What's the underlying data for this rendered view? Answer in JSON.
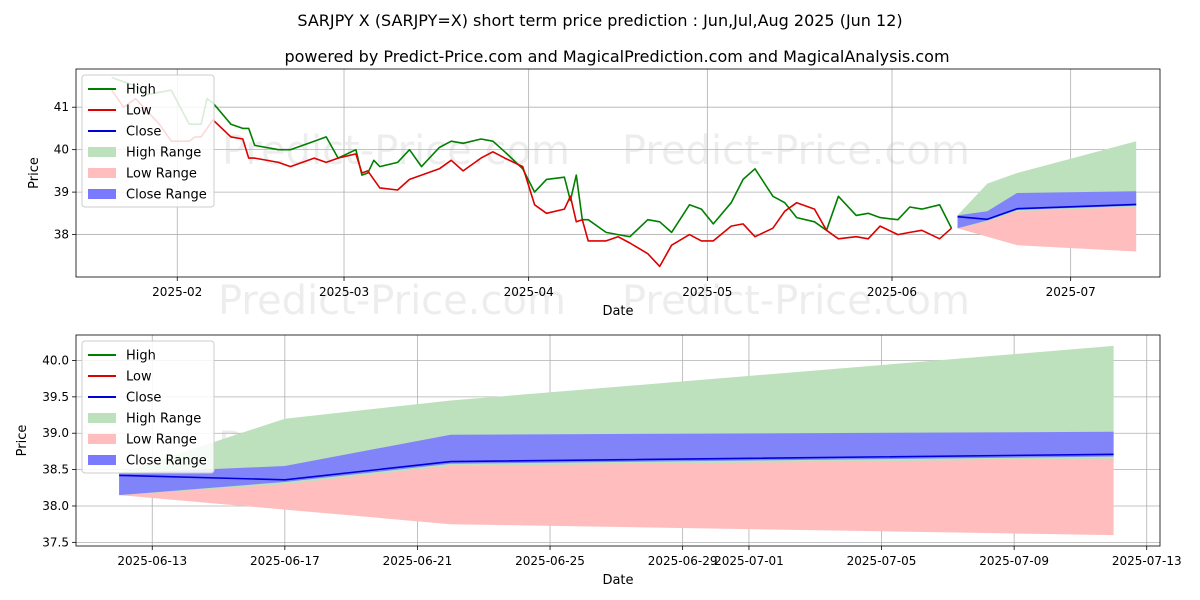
{
  "title": "SARJPY X (SARJPY=X) short term price prediction : Jun,Jul,Aug 2025 (Jun 12)",
  "subtitle": "powered by Predict-Price.com and MagicalPrediction.com and MagicalAnalysis.com",
  "watermark": "Predict-Price.com",
  "colors": {
    "high": "#008000",
    "low": "#dd0000",
    "close": "#0000dd",
    "high_range": "#bde0bd",
    "low_range": "#ffbdbd",
    "close_range": "#7a7aff"
  },
  "chart_data": [
    {
      "type": "line",
      "title": "history + forecast",
      "xlabel": "Date",
      "ylabel": "Price",
      "ylim": [
        37.0,
        41.9
      ],
      "x_range": [
        "2025-01-15",
        "2025-07-16"
      ],
      "x_ticks": [
        {
          "d": "2025-02-01",
          "label": "2025-02"
        },
        {
          "d": "2025-03-01",
          "label": "2025-03"
        },
        {
          "d": "2025-04-01",
          "label": "2025-04"
        },
        {
          "d": "2025-05-01",
          "label": "2025-05"
        },
        {
          "d": "2025-06-01",
          "label": "2025-06"
        },
        {
          "d": "2025-07-01",
          "label": "2025-07"
        }
      ],
      "y_ticks": [
        38,
        39,
        40,
        41
      ],
      "legend": [
        "High",
        "Low",
        "Close",
        "High Range",
        "Low Range",
        "Close Range"
      ],
      "series": [
        {
          "name": "High",
          "x": [
            "2025-01-21",
            "2025-01-23",
            "2025-01-25",
            "2025-01-27",
            "2025-01-29",
            "2025-01-31",
            "2025-02-03",
            "2025-02-04",
            "2025-02-05",
            "2025-02-06",
            "2025-02-07",
            "2025-02-10",
            "2025-02-12",
            "2025-02-13",
            "2025-02-14",
            "2025-02-18",
            "2025-02-20",
            "2025-02-24",
            "2025-02-26",
            "2025-02-28",
            "2025-03-03",
            "2025-03-04",
            "2025-03-05",
            "2025-03-06",
            "2025-03-07",
            "2025-03-10",
            "2025-03-12",
            "2025-03-14",
            "2025-03-17",
            "2025-03-19",
            "2025-03-21",
            "2025-03-24",
            "2025-03-26",
            "2025-03-28",
            "2025-03-31",
            "2025-04-02",
            "2025-04-04",
            "2025-04-07",
            "2025-04-08",
            "2025-04-09",
            "2025-04-10",
            "2025-04-11",
            "2025-04-14",
            "2025-04-16",
            "2025-04-18",
            "2025-04-21",
            "2025-04-23",
            "2025-04-25",
            "2025-04-28",
            "2025-04-30",
            "2025-05-02",
            "2025-05-05",
            "2025-05-07",
            "2025-05-09",
            "2025-05-12",
            "2025-05-14",
            "2025-05-16",
            "2025-05-19",
            "2025-05-21",
            "2025-05-23",
            "2025-05-26",
            "2025-05-28",
            "2025-05-30",
            "2025-06-02",
            "2025-06-04",
            "2025-06-06",
            "2025-06-09",
            "2025-06-11"
          ],
          "values": [
            41.7,
            41.6,
            41.5,
            41.3,
            41.35,
            41.4,
            40.6,
            40.6,
            40.6,
            41.2,
            41.1,
            40.6,
            40.5,
            40.5,
            40.1,
            40.0,
            40.0,
            40.2,
            40.3,
            39.8,
            40.0,
            39.4,
            39.45,
            39.75,
            39.6,
            39.7,
            40.0,
            39.6,
            40.05,
            40.2,
            40.15,
            40.25,
            40.2,
            39.95,
            39.55,
            39.0,
            39.3,
            39.35,
            38.8,
            39.4,
            38.35,
            38.35,
            38.05,
            38.0,
            37.95,
            38.35,
            38.3,
            38.05,
            38.7,
            38.6,
            38.25,
            38.75,
            39.3,
            39.55,
            38.9,
            38.75,
            38.4,
            38.3,
            38.1,
            38.9,
            38.45,
            38.5,
            38.4,
            38.35,
            38.65,
            38.6,
            38.7,
            38.15
          ]
        },
        {
          "name": "Low",
          "x": [
            "2025-01-21",
            "2025-01-23",
            "2025-01-25",
            "2025-01-27",
            "2025-01-29",
            "2025-01-31",
            "2025-02-03",
            "2025-02-04",
            "2025-02-05",
            "2025-02-06",
            "2025-02-07",
            "2025-02-10",
            "2025-02-12",
            "2025-02-13",
            "2025-02-14",
            "2025-02-18",
            "2025-02-20",
            "2025-02-24",
            "2025-02-26",
            "2025-02-28",
            "2025-03-03",
            "2025-03-04",
            "2025-03-05",
            "2025-03-06",
            "2025-03-07",
            "2025-03-10",
            "2025-03-12",
            "2025-03-14",
            "2025-03-17",
            "2025-03-19",
            "2025-03-21",
            "2025-03-24",
            "2025-03-26",
            "2025-03-28",
            "2025-03-31",
            "2025-04-02",
            "2025-04-04",
            "2025-04-07",
            "2025-04-08",
            "2025-04-09",
            "2025-04-10",
            "2025-04-11",
            "2025-04-14",
            "2025-04-16",
            "2025-04-18",
            "2025-04-21",
            "2025-04-23",
            "2025-04-25",
            "2025-04-28",
            "2025-04-30",
            "2025-05-02",
            "2025-05-05",
            "2025-05-07",
            "2025-05-09",
            "2025-05-12",
            "2025-05-14",
            "2025-05-16",
            "2025-05-19",
            "2025-05-21",
            "2025-05-23",
            "2025-05-26",
            "2025-05-28",
            "2025-05-30",
            "2025-06-02",
            "2025-06-04",
            "2025-06-06",
            "2025-06-09",
            "2025-06-11"
          ],
          "values": [
            41.4,
            41.0,
            41.2,
            40.9,
            40.6,
            40.2,
            40.2,
            40.3,
            40.3,
            40.5,
            40.7,
            40.3,
            40.25,
            39.8,
            39.8,
            39.7,
            39.6,
            39.8,
            39.7,
            39.8,
            39.9,
            39.45,
            39.5,
            39.3,
            39.1,
            39.05,
            39.3,
            39.4,
            39.55,
            39.75,
            39.5,
            39.8,
            39.95,
            39.8,
            39.6,
            38.7,
            38.5,
            38.6,
            38.9,
            38.3,
            38.35,
            37.85,
            37.85,
            37.95,
            37.8,
            37.55,
            37.25,
            37.75,
            38.0,
            37.85,
            37.85,
            38.2,
            38.25,
            37.95,
            38.15,
            38.55,
            38.75,
            38.6,
            38.1,
            37.9,
            37.95,
            37.9,
            38.2,
            38.0,
            38.05,
            38.1,
            37.9,
            38.15
          ]
        }
      ],
      "close_forecast": {
        "x": [
          "2025-06-12",
          "2025-06-17",
          "2025-06-22",
          "2025-07-12"
        ],
        "values": [
          38.42,
          38.36,
          38.61,
          38.71
        ]
      },
      "high_range": {
        "x": [
          "2025-06-12",
          "2025-06-17",
          "2025-06-22",
          "2025-07-12"
        ],
        "lower": [
          38.15,
          38.22,
          38.55,
          38.6
        ],
        "upper": [
          38.45,
          39.2,
          39.45,
          40.2
        ]
      },
      "low_range": {
        "x": [
          "2025-06-12",
          "2025-06-17",
          "2025-06-22",
          "2025-07-12"
        ],
        "lower": [
          38.15,
          37.95,
          37.75,
          37.6
        ],
        "upper": [
          38.15,
          38.3,
          38.55,
          38.65
        ]
      },
      "close_range": {
        "x": [
          "2025-06-12",
          "2025-06-17",
          "2025-06-22",
          "2025-07-12"
        ],
        "lower": [
          38.15,
          38.33,
          38.58,
          38.68
        ],
        "upper": [
          38.45,
          38.55,
          38.98,
          39.02
        ]
      }
    },
    {
      "type": "line",
      "title": "forecast detail",
      "xlabel": "Date",
      "ylabel": "Price",
      "ylim": [
        37.45,
        40.35
      ],
      "x_range": [
        "2025-06-10.7",
        "2025-07-13.4"
      ],
      "x_ticks": [
        {
          "d": "2025-06-13",
          "label": "2025-06-13"
        },
        {
          "d": "2025-06-17",
          "label": "2025-06-17"
        },
        {
          "d": "2025-06-21",
          "label": "2025-06-21"
        },
        {
          "d": "2025-06-25",
          "label": "2025-06-25"
        },
        {
          "d": "2025-06-29",
          "label": "2025-06-29"
        },
        {
          "d": "2025-07-01",
          "label": "2025-07-01"
        },
        {
          "d": "2025-07-05",
          "label": "2025-07-05"
        },
        {
          "d": "2025-07-09",
          "label": "2025-07-09"
        },
        {
          "d": "2025-07-13",
          "label": "2025-07-13"
        }
      ],
      "y_ticks": [
        37.5,
        38.0,
        38.5,
        39.0,
        39.5,
        40.0
      ],
      "y_tick_labels": [
        "37.5",
        "38.0",
        "38.5",
        "39.0",
        "39.5",
        "40.0"
      ],
      "legend": [
        "High",
        "Low",
        "Close",
        "High Range",
        "Low Range",
        "Close Range"
      ],
      "close_forecast": {
        "x": [
          "2025-06-12",
          "2025-06-17",
          "2025-06-22",
          "2025-07-12"
        ],
        "values": [
          38.42,
          38.36,
          38.61,
          38.71
        ]
      },
      "high_range": {
        "x": [
          "2025-06-12",
          "2025-06-17",
          "2025-06-22",
          "2025-07-12"
        ],
        "lower": [
          38.15,
          38.22,
          38.55,
          38.6
        ],
        "upper": [
          38.45,
          39.2,
          39.45,
          40.2
        ]
      },
      "low_range": {
        "x": [
          "2025-06-12",
          "2025-06-17",
          "2025-06-22",
          "2025-07-12"
        ],
        "lower": [
          38.15,
          37.95,
          37.75,
          37.6
        ],
        "upper": [
          38.15,
          38.3,
          38.55,
          38.65
        ]
      },
      "close_range": {
        "x": [
          "2025-06-12",
          "2025-06-17",
          "2025-06-22",
          "2025-07-12"
        ],
        "lower": [
          38.15,
          38.33,
          38.58,
          38.68
        ],
        "upper": [
          38.45,
          38.55,
          38.98,
          39.02
        ]
      }
    }
  ]
}
